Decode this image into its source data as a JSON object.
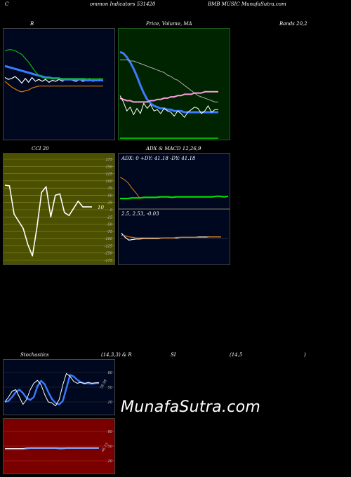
{
  "header": {
    "left": "C",
    "mid": "ommon  Indicators 531420",
    "right": "BMB MUSIC MunafaSutra.com"
  },
  "titles": {
    "bollinger": "B",
    "price": "Price,  Volume,  MA",
    "bands": "Bands 20,2",
    "cci": "CCI 20",
    "adx_macd": "ADX  &  MACD 12,26,9",
    "stoch_a": "Stochastics",
    "stoch_b": "(14,3,3) & R",
    "stoch_c": "SI",
    "stoch_d": "(14,5",
    "stoch_e": ")"
  },
  "watermark": "MunafaSutra.com",
  "colors": {
    "dark_navy": "#000820",
    "dark_green": "#002400",
    "olive": "#4a5000",
    "dark_red": "#7a0000",
    "blue": "#3a7bff",
    "green": "#00cc00",
    "orange": "#e07a00",
    "pink": "#ff9de0"
  },
  "chart_data": [
    {
      "id": "bollinger",
      "type": "line",
      "title": "B",
      "x": [
        0,
        1,
        2,
        3,
        4,
        5,
        6,
        7,
        8,
        9,
        10,
        11,
        12,
        13,
        14,
        15,
        16,
        17,
        18,
        19,
        20,
        21,
        22,
        23,
        24,
        25,
        26,
        27,
        28,
        29
      ],
      "series": [
        {
          "values": [
            62,
            60,
            61,
            63,
            60,
            56,
            61,
            57,
            62,
            58,
            60,
            58,
            60,
            57,
            59,
            58,
            60,
            58,
            61,
            60,
            59,
            58,
            60,
            58,
            59,
            60,
            58,
            59,
            60,
            58
          ],
          "color": "#ffffff"
        },
        {
          "values": [
            74,
            73,
            72,
            71,
            70,
            69,
            68,
            67,
            66,
            65,
            64,
            63,
            62,
            62,
            61,
            61,
            61,
            60,
            60,
            60,
            60,
            60,
            60,
            60,
            59,
            59,
            59,
            59,
            59,
            59
          ],
          "color": "#3a7bff"
        },
        {
          "values": [
            90,
            91,
            91,
            90,
            88,
            86,
            82,
            78,
            73,
            68,
            64,
            62,
            61,
            61,
            61,
            61,
            61,
            61,
            61,
            61,
            61,
            61,
            61,
            61,
            61,
            61,
            61,
            61,
            61,
            61
          ],
          "color": "#00bb00"
        },
        {
          "values": [
            58,
            55,
            52,
            50,
            48,
            47,
            48,
            49,
            51,
            52,
            53,
            53,
            53,
            53,
            53,
            53,
            53,
            53,
            53,
            53,
            53,
            53,
            53,
            53,
            53,
            53,
            53,
            53,
            53,
            53
          ],
          "color": "#e07a00"
        }
      ]
    },
    {
      "id": "price_volume_ma",
      "type": "line",
      "title": "Price,  Volume,  MA",
      "x": [
        0,
        1,
        2,
        3,
        4,
        5,
        6,
        7,
        8,
        9,
        10,
        11,
        12,
        13,
        14,
        15,
        16,
        17,
        18,
        19,
        20,
        21,
        22,
        23,
        24,
        25,
        26,
        27,
        28,
        29
      ],
      "series": [
        {
          "values": [
            94,
            93,
            90,
            86,
            81,
            75,
            68,
            62,
            57,
            54,
            52,
            51,
            50,
            50,
            49,
            49,
            48,
            48,
            48,
            47,
            47,
            47,
            47,
            47,
            47,
            47,
            47,
            47,
            47,
            47
          ],
          "color": "#3a7bff"
        },
        {
          "values": [
            88,
            88,
            88,
            87,
            87,
            86,
            85,
            84,
            83,
            82,
            81,
            80,
            79,
            78,
            76,
            75,
            73,
            72,
            70,
            68,
            66,
            64,
            62,
            60,
            59,
            58,
            57,
            56,
            55,
            55
          ],
          "color": "#aaaaaa"
        },
        {
          "values": [
            58,
            57,
            56,
            56,
            55,
            55,
            55,
            55,
            55,
            56,
            56,
            57,
            57,
            58,
            58,
            59,
            59,
            60,
            60,
            61,
            61,
            61,
            62,
            62,
            62,
            63,
            63,
            63,
            63,
            63
          ],
          "color": "#ff9de0"
        },
        {
          "values": [
            60,
            55,
            48,
            51,
            45,
            50,
            46,
            54,
            50,
            53,
            48,
            49,
            46,
            50,
            48,
            47,
            44,
            48,
            46,
            43,
            47,
            49,
            51,
            50,
            46,
            48,
            52,
            47,
            49,
            49
          ],
          "color": "#ffffff"
        }
      ]
    },
    {
      "id": "cci",
      "type": "line",
      "title": "CCI 20",
      "ylim": [
        -175,
        175
      ],
      "yticks": [
        175,
        150,
        125,
        100,
        75,
        50,
        25,
        0,
        -25,
        -50,
        -75,
        -100,
        -125,
        -150,
        -175
      ],
      "last_label": "10",
      "x": [
        0,
        1,
        2,
        3,
        4,
        5,
        6,
        7,
        8,
        9,
        10,
        11,
        12,
        13,
        14,
        15,
        16,
        17,
        18,
        19
      ],
      "values": [
        85,
        83,
        -15,
        -40,
        -65,
        -120,
        -160,
        -60,
        60,
        80,
        -25,
        50,
        55,
        -10,
        -20,
        5,
        30,
        10,
        10,
        10
      ],
      "color": "#ffffff"
    },
    {
      "id": "adx",
      "type": "line",
      "label": "ADX: 0   +DY: 41.18   -DY: 41.18",
      "x": [
        0,
        1,
        2,
        3,
        4,
        5,
        6,
        7,
        8,
        9,
        10,
        11,
        12,
        13,
        14,
        15,
        16,
        17,
        18,
        19,
        20,
        21,
        22,
        23,
        24,
        25,
        26,
        27
      ],
      "series": [
        {
          "values": [
            10,
            10,
            10,
            11,
            11,
            11,
            12,
            12,
            12,
            12,
            13,
            13,
            13,
            12,
            13,
            13,
            13,
            13,
            13,
            13,
            13,
            13,
            13,
            13,
            14,
            14,
            13,
            14
          ],
          "color": "#00dd00"
        },
        {
          "values": [
            48,
            44,
            38,
            28,
            20,
            10,
            null,
            null,
            null,
            null,
            null,
            null,
            null,
            null,
            null,
            null,
            null,
            null,
            null,
            null,
            null,
            null,
            null,
            null,
            null,
            null,
            null,
            null
          ],
          "color": "#e07a00"
        }
      ]
    },
    {
      "id": "macd",
      "type": "line",
      "label": "2.5,  2.53,  -0.03",
      "x": [
        0,
        1,
        2,
        3,
        4,
        5,
        6,
        7,
        8,
        9,
        10,
        11,
        12,
        13,
        14,
        15,
        16,
        17,
        18,
        19,
        20,
        21,
        22,
        23,
        24,
        25,
        26,
        27
      ],
      "series": [
        {
          "values": [
            1,
            0.2,
            -0.3,
            -0.2,
            -0.1,
            -0.1,
            0,
            0,
            0,
            0,
            0,
            0.1,
            0.1,
            0.1,
            0.1,
            0.1,
            0.2,
            0.2,
            0.2,
            0.2,
            0.2,
            0.3,
            0.3,
            0.3,
            0.3,
            0.3,
            0.3,
            0.3
          ],
          "color": "#ffffff"
        },
        {
          "values": [
            0.6,
            0.5,
            0.3,
            0.2,
            0.1,
            0.1,
            0.1,
            0.1,
            0.1,
            0.1,
            0.1,
            0.1,
            0.1,
            0.1,
            0.1,
            0.2,
            0.2,
            0.2,
            0.2,
            0.2,
            0.2,
            0.2,
            0.2,
            0.2,
            0.3,
            0.3,
            0.3,
            0.3
          ],
          "color": "#e07a00"
        }
      ]
    },
    {
      "id": "stochastics",
      "type": "line",
      "ylim": [
        0,
        100
      ],
      "yticks": [
        80,
        50,
        20
      ],
      "last_label": "58.98",
      "x": [
        0,
        1,
        2,
        3,
        4,
        5,
        6,
        7,
        8,
        9,
        10,
        11,
        12,
        13,
        14,
        15,
        16,
        17,
        18,
        19,
        20,
        21,
        22,
        23,
        24,
        25,
        26
      ],
      "series": [
        {
          "values": [
            20,
            22,
            30,
            40,
            45,
            38,
            28,
            24,
            30,
            52,
            63,
            56,
            40,
            26,
            18,
            15,
            22,
            48,
            75,
            72,
            65,
            60,
            58,
            58,
            57,
            58,
            59
          ],
          "color": "#3a7bff"
        },
        {
          "values": [
            20,
            30,
            42,
            45,
            30,
            15,
            25,
            45,
            58,
            64,
            55,
            35,
            20,
            18,
            12,
            25,
            55,
            78,
            72,
            62,
            58,
            60,
            57,
            60,
            58,
            59,
            59
          ],
          "color": "#ffffff"
        }
      ]
    },
    {
      "id": "rsi",
      "type": "line",
      "ylim": [
        0,
        100
      ],
      "yticks": [
        80,
        50,
        20
      ],
      "last_label": "46.73",
      "x": [
        0,
        1,
        2,
        3,
        4,
        5,
        6,
        7,
        8,
        9,
        10,
        11,
        12,
        13,
        14,
        15,
        16,
        17,
        18,
        19,
        20,
        21,
        22,
        23,
        24,
        25,
        26
      ],
      "series": [
        {
          "values": [
            44,
            44,
            44,
            44,
            44,
            44,
            45,
            46,
            46,
            46,
            46,
            46,
            46,
            46,
            46,
            45,
            45,
            46,
            46,
            46,
            46,
            46,
            46,
            46,
            46,
            46,
            46
          ],
          "color": "#3a7bff"
        },
        {
          "values": [
            45,
            45,
            45,
            45,
            45,
            45,
            46,
            46,
            46,
            46,
            46,
            46,
            46,
            46,
            46,
            46,
            46,
            46,
            46,
            46,
            46,
            46,
            46,
            46,
            46,
            46,
            46
          ],
          "color": "#ffffff"
        }
      ]
    }
  ]
}
